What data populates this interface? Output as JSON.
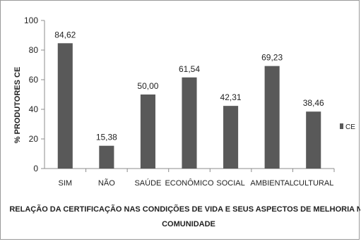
{
  "chart_data": {
    "type": "bar",
    "categories": [
      "SIM",
      "NÃO",
      "SAÚDE",
      "ECONÔMICO",
      "SOCIAL",
      "AMBIENTAL",
      "CULTURAL"
    ],
    "series": [
      {
        "name": "CE",
        "values": [
          84.62,
          15.38,
          50.0,
          61.54,
          42.31,
          69.23,
          38.46
        ],
        "labels": [
          "84,62",
          "15,38",
          "50,00",
          "61,54",
          "42,31",
          "69,23",
          "38,46"
        ],
        "color": "#595959"
      }
    ],
    "ylabel": "% PRODUTORES CE",
    "xlabel_lines": [
      "RELAÇÃO DA CERTIFICAÇÃO NAS CONDIÇÕES DE VIDA E SEUS ASPECTOS DE MELHORIA NA",
      "COMUNIDADE"
    ],
    "ylim": [
      0,
      100
    ],
    "yticks": [
      0,
      20,
      40,
      60,
      80,
      100
    ],
    "grid": false,
    "legend": {
      "position": "right",
      "entries": [
        "CE"
      ]
    }
  }
}
